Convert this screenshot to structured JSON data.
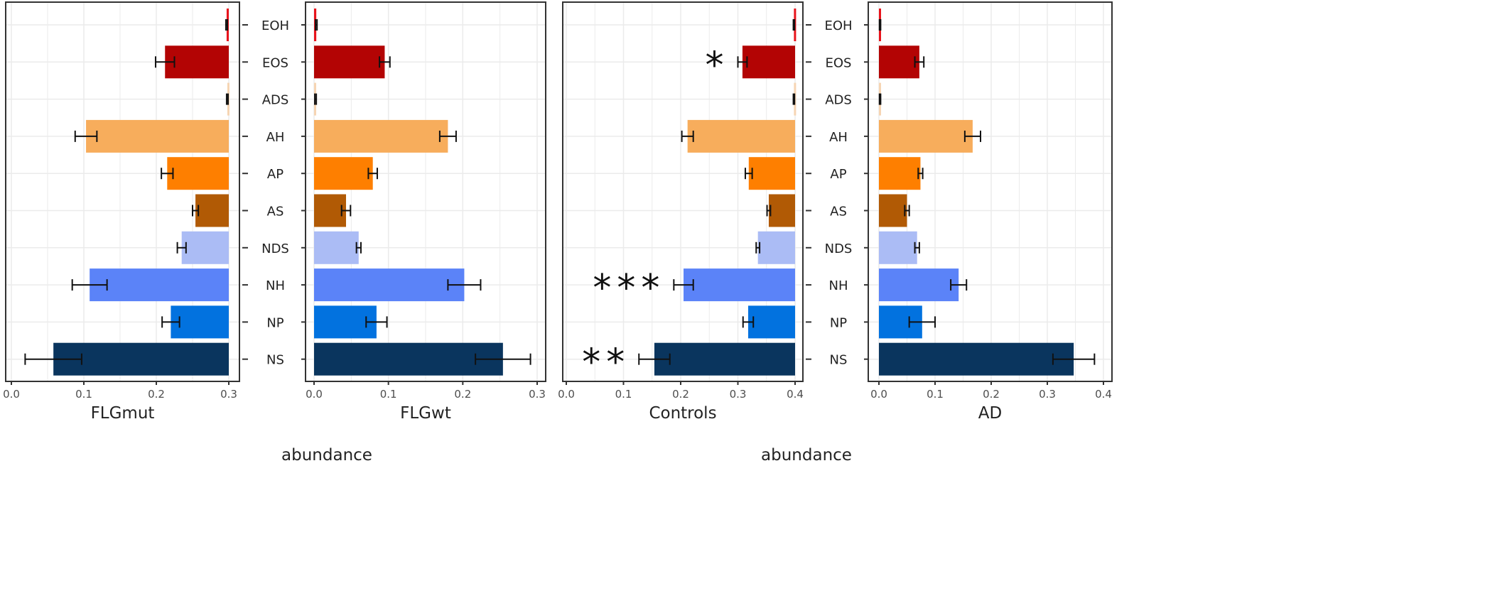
{
  "chart_data": [
    {
      "type": "bar",
      "orientation": "horizontal",
      "xlabel": "FLGmut",
      "reversed_x": true,
      "xlim": [
        0.3,
        0.0
      ],
      "xticks": [
        "0.3",
        "0.2",
        "0.1",
        "0.0"
      ],
      "categories": [
        "EOH",
        "EOS",
        "ADS",
        "AH",
        "AP",
        "AS",
        "NDS",
        "NH",
        "NP",
        "NS"
      ],
      "values": [
        0.003,
        0.088,
        0.002,
        0.197,
        0.085,
        0.046,
        0.065,
        0.192,
        0.08,
        0.242
      ],
      "errors": [
        0.001,
        0.013,
        0.001,
        0.015,
        0.008,
        0.004,
        0.006,
        0.024,
        0.012,
        0.039
      ],
      "annotations": [
        "",
        "",
        "",
        "",
        "",
        "",
        "",
        "",
        "",
        ""
      ]
    },
    {
      "type": "bar",
      "orientation": "horizontal",
      "xlabel": "FLGwt",
      "reversed_x": false,
      "xlim": [
        0.0,
        0.3
      ],
      "xticks": [
        "0.0",
        "0.1",
        "0.2",
        "0.3"
      ],
      "categories": [
        "EOH",
        "EOS",
        "ADS",
        "AH",
        "AP",
        "AS",
        "NDS",
        "NH",
        "NP",
        "NS"
      ],
      "values": [
        0.003,
        0.095,
        0.002,
        0.18,
        0.079,
        0.043,
        0.06,
        0.202,
        0.084,
        0.254
      ],
      "errors": [
        0.001,
        0.007,
        0.001,
        0.011,
        0.006,
        0.006,
        0.003,
        0.022,
        0.014,
        0.037
      ],
      "annotations": [
        "",
        "",
        "",
        "",
        "",
        "",
        "",
        "",
        "",
        ""
      ]
    },
    {
      "type": "bar",
      "orientation": "horizontal",
      "xlabel": "Controls",
      "reversed_x": true,
      "xlim": [
        0.4,
        0.0
      ],
      "xticks": [
        "0.4",
        "0.3",
        "0.2",
        "0.1",
        "0.0"
      ],
      "categories": [
        "EOH",
        "EOS",
        "ADS",
        "AH",
        "AP",
        "AS",
        "NDS",
        "NH",
        "NP",
        "NS"
      ],
      "values": [
        0.002,
        0.092,
        0.002,
        0.188,
        0.081,
        0.046,
        0.065,
        0.195,
        0.082,
        0.246
      ],
      "errors": [
        0.001,
        0.008,
        0.001,
        0.01,
        0.006,
        0.003,
        0.003,
        0.017,
        0.009,
        0.027
      ],
      "annotations": [
        "",
        "*",
        "",
        "",
        "",
        "",
        "",
        "***",
        "",
        "**"
      ]
    },
    {
      "type": "bar",
      "orientation": "horizontal",
      "xlabel": "AD",
      "reversed_x": false,
      "xlim": [
        0.0,
        0.4
      ],
      "xticks": [
        "0.0",
        "0.1",
        "0.2",
        "0.3",
        "0.4"
      ],
      "categories": [
        "EOH",
        "EOS",
        "ADS",
        "AH",
        "AP",
        "AS",
        "NDS",
        "NH",
        "NP",
        "NS"
      ],
      "values": [
        0.002,
        0.072,
        0.002,
        0.167,
        0.074,
        0.05,
        0.068,
        0.142,
        0.077,
        0.347
      ],
      "errors": [
        0.001,
        0.008,
        0.001,
        0.014,
        0.004,
        0.004,
        0.004,
        0.014,
        0.023,
        0.037
      ],
      "annotations": [
        "",
        "",
        "",
        "",
        "",
        "",
        "",
        "",
        "",
        ""
      ]
    }
  ],
  "shared_xlabels": [
    "abundance",
    "abundance"
  ],
  "category_colors": {
    "EOH": "#e8141c",
    "EOS": "#b30404",
    "ADS": "#f6d5b3",
    "AH": "#f7ad5c",
    "AP": "#fe7f00",
    "AS": "#b15a05",
    "NDS": "#abbcf5",
    "NH": "#5b83f8",
    "NP": "#0272df",
    "NS": "#0a355e"
  },
  "grid": true
}
